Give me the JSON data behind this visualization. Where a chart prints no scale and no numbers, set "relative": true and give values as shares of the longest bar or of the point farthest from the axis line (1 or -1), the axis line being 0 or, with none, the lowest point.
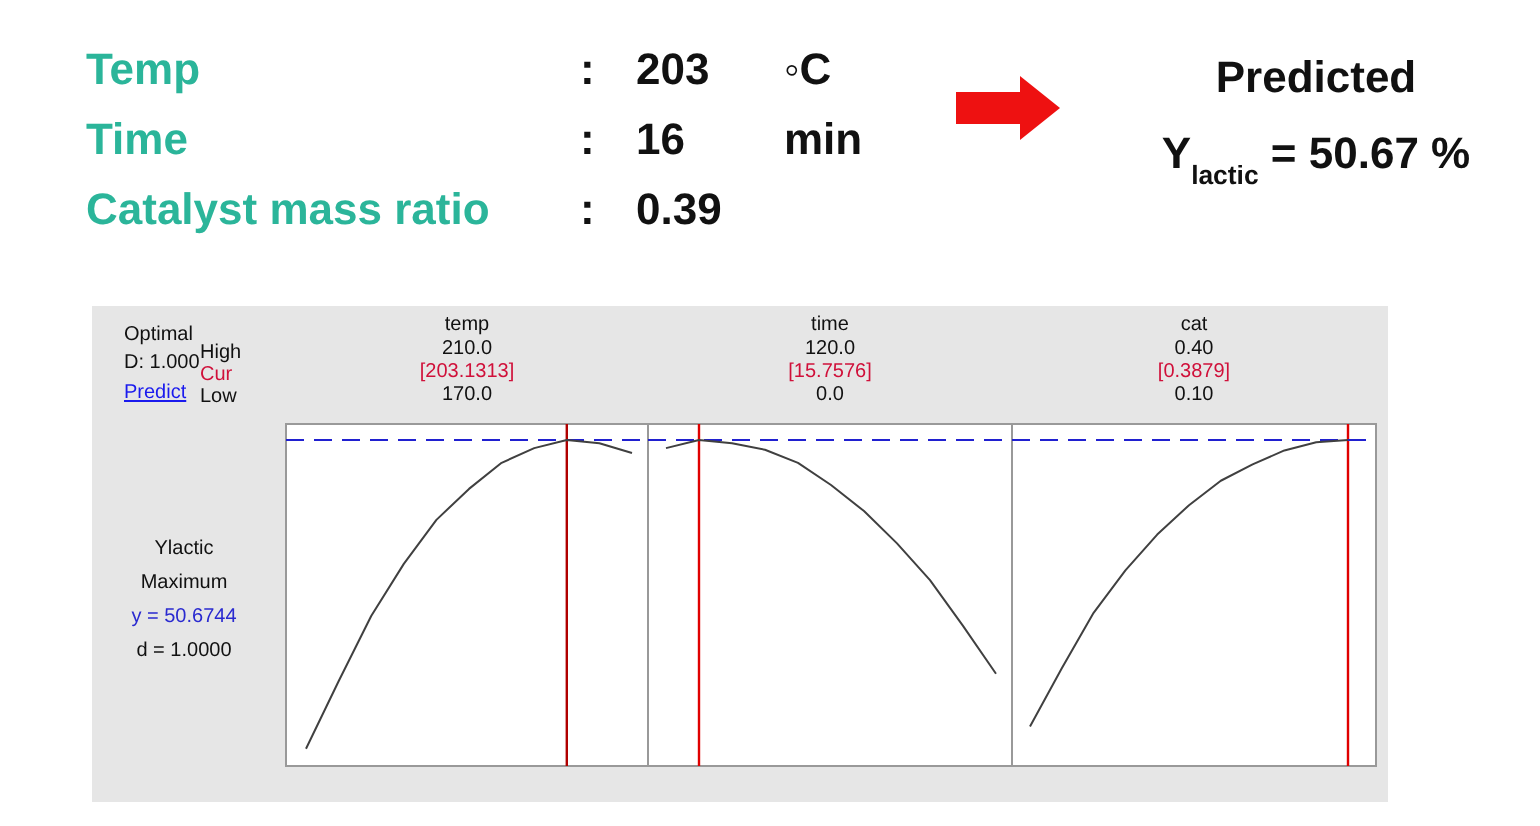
{
  "chart_data": [
    {
      "type": "other",
      "annotations": [
        "Temp",
        ":",
        "203",
        "◦C",
        "Time",
        ":",
        "16",
        "min",
        "Catalyst mass ratio",
        ":",
        "0.39",
        "Predicted",
        "Y$_{lactic}$ = 50.67 %"
      ]
    },
    {
      "type": "other",
      "annotations": [
        "Optimal",
        "D: 1.000",
        "Predict",
        "High",
        "Cur",
        "Low",
        "Ylactic",
        "Maximum",
        "y = 50.6744",
        "d = 1.0000"
      ]
    },
    {
      "type": "line",
      "title": "temp",
      "relative": true,
      "color": "#404040",
      "annotations": [
        "210.0",
        "[203.1313]",
        "170.0"
      ],
      "categories": [
        null,
        null,
        null,
        null,
        null,
        null,
        null,
        null,
        null,
        null,
        null
      ],
      "values": [
        0.053,
        0.26,
        0.46,
        0.62,
        0.755,
        0.85,
        0.93,
        0.975,
        1.0,
        0.99,
        0.96
      ],
      "ref_lines": [
        {
          "axis": "y",
          "value": 1,
          "color": "#2020d0",
          "line_style": "dashed"
        }
      ]
    },
    {
      "type": "line",
      "title": "time",
      "relative": true,
      "color": "#404040",
      "annotations": [
        "120.0",
        "[15.7576]",
        "0.0"
      ],
      "categories": [
        null,
        null,
        null,
        null,
        null,
        null,
        null,
        null,
        null,
        null,
        null
      ],
      "values": [
        0.975,
        1.0,
        0.99,
        0.97,
        0.93,
        0.862,
        0.782,
        0.683,
        0.57,
        0.43,
        0.283
      ],
      "ref_lines": [
        {
          "axis": "y",
          "value": 1,
          "color": "#2020d0",
          "line_style": "dashed"
        }
      ]
    },
    {
      "type": "line",
      "title": "cat",
      "relative": true,
      "color": "#404040",
      "annotations": [
        "0.40",
        "[0.3879]",
        "0.10"
      ],
      "categories": [
        null,
        null,
        null,
        null,
        null,
        null,
        null,
        null,
        null,
        null,
        null
      ],
      "values": [
        0.121,
        0.3,
        0.47,
        0.6,
        0.71,
        0.8,
        0.875,
        0.925,
        0.968,
        0.993,
        1.0
      ],
      "ref_lines": [
        {
          "axis": "y",
          "value": 1,
          "color": "#2020d0",
          "line_style": "dashed"
        }
      ]
    }
  ]
}
